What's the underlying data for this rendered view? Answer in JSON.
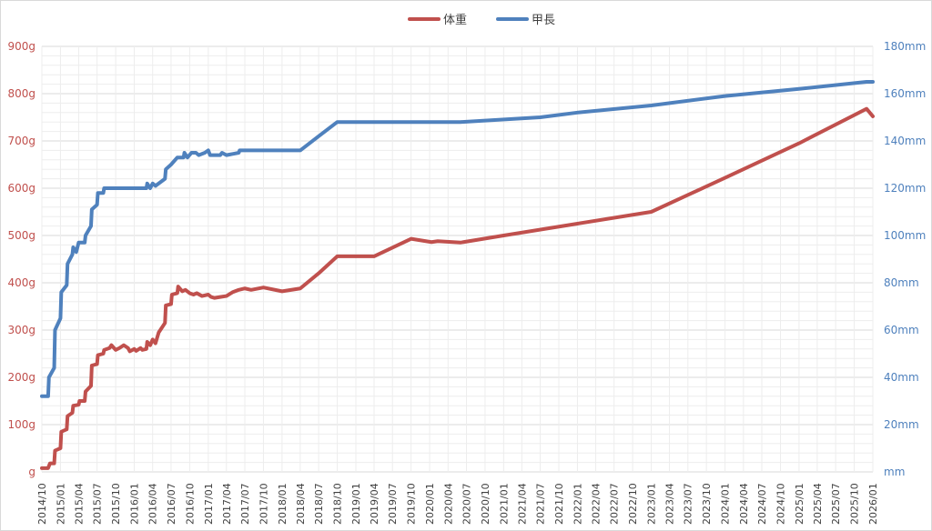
{
  "chart_data": {
    "type": "line",
    "title": "",
    "legend": {
      "position": "top-center"
    },
    "grid": true,
    "colors": {
      "weight": "#c0504d",
      "length": "#4f81bd"
    },
    "x_tick_labels": [
      "2014/10",
      "2015/01",
      "2015/04",
      "2015/07",
      "2015/10",
      "2016/01",
      "2016/04",
      "2016/07",
      "2016/10",
      "2017/01",
      "2017/04",
      "2017/07",
      "2017/10",
      "2018/01",
      "2018/04",
      "2018/07",
      "2018/10",
      "2019/01",
      "2019/04",
      "2019/07",
      "2019/10",
      "2020/01",
      "2020/04",
      "2020/07",
      "2020/10",
      "2021/01",
      "2021/04",
      "2021/07",
      "2021/10",
      "2022/01",
      "2022/04",
      "2022/07",
      "2022/10",
      "2023/01",
      "2023/04",
      "2023/07",
      "2023/10",
      "2024/01",
      "2024/04",
      "2024/07",
      "2024/10",
      "2025/01",
      "2025/04",
      "2025/07",
      "2025/10",
      "2026/01"
    ],
    "xlim": [
      "2014/10",
      "2026/01"
    ],
    "y_left": {
      "ylim": [
        0,
        900
      ],
      "ticks": [
        0,
        100,
        200,
        300,
        400,
        500,
        600,
        700,
        800,
        900
      ],
      "tick_labels": [
        "g",
        "100g",
        "200g",
        "300g",
        "400g",
        "500g",
        "600g",
        "700g",
        "800g",
        "900g"
      ]
    },
    "y_right": {
      "ylim": [
        0,
        180
      ],
      "ticks": [
        0,
        20,
        40,
        60,
        80,
        100,
        120,
        140,
        160,
        180
      ],
      "tick_labels": [
        "mm",
        "20mm",
        "40mm",
        "60mm",
        "80mm",
        "100mm",
        "120mm",
        "140mm",
        "160mm",
        "180mm"
      ]
    },
    "series": [
      {
        "name": "体重",
        "axis": "left",
        "color": "#c0504d",
        "points": [
          [
            "2014/10/01",
            8
          ],
          [
            "2014/11/01",
            8
          ],
          [
            "2014/11/10",
            18
          ],
          [
            "2014/12/01",
            18
          ],
          [
            "2014/12/05",
            45
          ],
          [
            "2015/01/01",
            50
          ],
          [
            "2015/01/05",
            85
          ],
          [
            "2015/02/01",
            90
          ],
          [
            "2015/02/05",
            118
          ],
          [
            "2015/03/01",
            125
          ],
          [
            "2015/03/05",
            140
          ],
          [
            "2015/04/01",
            142
          ],
          [
            "2015/04/05",
            150
          ],
          [
            "2015/05/01",
            150
          ],
          [
            "2015/05/05",
            170
          ],
          [
            "2015/06/01",
            182
          ],
          [
            "2015/06/05",
            225
          ],
          [
            "2015/07/01",
            228
          ],
          [
            "2015/07/05",
            247
          ],
          [
            "2015/08/01",
            250
          ],
          [
            "2015/08/05",
            258
          ],
          [
            "2015/09/01",
            262
          ],
          [
            "2015/09/10",
            268
          ],
          [
            "2015/10/01",
            258
          ],
          [
            "2015/10/20",
            262
          ],
          [
            "2015/11/10",
            268
          ],
          [
            "2015/12/01",
            262
          ],
          [
            "2015/12/10",
            255
          ],
          [
            "2016/01/01",
            260
          ],
          [
            "2016/01/10",
            256
          ],
          [
            "2016/02/01",
            262
          ],
          [
            "2016/02/10",
            258
          ],
          [
            "2016/03/01",
            260
          ],
          [
            "2016/03/05",
            275
          ],
          [
            "2016/03/20",
            268
          ],
          [
            "2016/04/01",
            280
          ],
          [
            "2016/04/15",
            272
          ],
          [
            "2016/05/01",
            295
          ],
          [
            "2016/06/01",
            315
          ],
          [
            "2016/06/05",
            352
          ],
          [
            "2016/07/01",
            355
          ],
          [
            "2016/07/05",
            375
          ],
          [
            "2016/08/01",
            378
          ],
          [
            "2016/08/05",
            392
          ],
          [
            "2016/08/25",
            382
          ],
          [
            "2016/09/10",
            385
          ],
          [
            "2016/10/01",
            378
          ],
          [
            "2016/10/20",
            375
          ],
          [
            "2016/11/05",
            378
          ],
          [
            "2016/12/01",
            372
          ],
          [
            "2017/01/01",
            375
          ],
          [
            "2017/01/15",
            370
          ],
          [
            "2017/02/01",
            368
          ],
          [
            "2017/03/01",
            370
          ],
          [
            "2017/04/01",
            372
          ],
          [
            "2017/05/01",
            380
          ],
          [
            "2017/06/01",
            385
          ],
          [
            "2017/07/01",
            388
          ],
          [
            "2017/08/01",
            385
          ],
          [
            "2017/10/01",
            390
          ],
          [
            "2018/01/01",
            382
          ],
          [
            "2018/04/01",
            388
          ],
          [
            "2018/07/01",
            420
          ],
          [
            "2018/10/01",
            456
          ],
          [
            "2019/04/01",
            456
          ],
          [
            "2019/10/01",
            493
          ],
          [
            "2020/01/10",
            486
          ],
          [
            "2020/02/10",
            488
          ],
          [
            "2020/06/01",
            485
          ],
          [
            "2021/01/01",
            500
          ],
          [
            "2022/01/01",
            525
          ],
          [
            "2023/01/01",
            550
          ],
          [
            "2024/01/01",
            622
          ],
          [
            "2025/01/01",
            695
          ],
          [
            "2025/12/01",
            768
          ],
          [
            "2026/01/01",
            752
          ]
        ]
      },
      {
        "name": "甲長",
        "axis": "right",
        "color": "#4f81bd",
        "points": [
          [
            "2014/10/01",
            32
          ],
          [
            "2014/11/01",
            32
          ],
          [
            "2014/11/05",
            40
          ],
          [
            "2014/12/01",
            44
          ],
          [
            "2014/12/05",
            60
          ],
          [
            "2015/01/01",
            65
          ],
          [
            "2015/01/05",
            76
          ],
          [
            "2015/02/01",
            79
          ],
          [
            "2015/02/05",
            88
          ],
          [
            "2015/03/01",
            92
          ],
          [
            "2015/03/05",
            95
          ],
          [
            "2015/03/20",
            93
          ],
          [
            "2015/04/01",
            97
          ],
          [
            "2015/05/01",
            97
          ],
          [
            "2015/05/05",
            100
          ],
          [
            "2015/06/01",
            104
          ],
          [
            "2015/06/05",
            111
          ],
          [
            "2015/07/01",
            113
          ],
          [
            "2015/07/05",
            118
          ],
          [
            "2015/08/01",
            118
          ],
          [
            "2015/08/05",
            120
          ],
          [
            "2015/10/01",
            120
          ],
          [
            "2016/01/01",
            120
          ],
          [
            "2016/03/01",
            120
          ],
          [
            "2016/03/05",
            122
          ],
          [
            "2016/03/20",
            120
          ],
          [
            "2016/04/01",
            122
          ],
          [
            "2016/04/15",
            121
          ],
          [
            "2016/05/01",
            122
          ],
          [
            "2016/06/01",
            124
          ],
          [
            "2016/06/05",
            128
          ],
          [
            "2016/07/01",
            130
          ],
          [
            "2016/08/01",
            133
          ],
          [
            "2016/09/01",
            133
          ],
          [
            "2016/09/05",
            135
          ],
          [
            "2016/09/20",
            133
          ],
          [
            "2016/10/10",
            135
          ],
          [
            "2016/11/01",
            135
          ],
          [
            "2016/11/15",
            134
          ],
          [
            "2016/12/15",
            135
          ],
          [
            "2017/01/01",
            136
          ],
          [
            "2017/01/10",
            134
          ],
          [
            "2017/02/01",
            134
          ],
          [
            "2017/03/01",
            134
          ],
          [
            "2017/03/10",
            135
          ],
          [
            "2017/04/01",
            134
          ],
          [
            "2017/06/01",
            135
          ],
          [
            "2017/06/05",
            136
          ],
          [
            "2018/01/01",
            136
          ],
          [
            "2018/04/01",
            136
          ],
          [
            "2018/07/01",
            142
          ],
          [
            "2018/10/01",
            148
          ],
          [
            "2019/04/01",
            148
          ],
          [
            "2020/06/01",
            148
          ],
          [
            "2021/07/01",
            150
          ],
          [
            "2022/01/01",
            152
          ],
          [
            "2023/01/01",
            155
          ],
          [
            "2024/01/01",
            159
          ],
          [
            "2025/01/01",
            162
          ],
          [
            "2025/12/01",
            165
          ],
          [
            "2026/01/01",
            165
          ]
        ]
      }
    ]
  }
}
